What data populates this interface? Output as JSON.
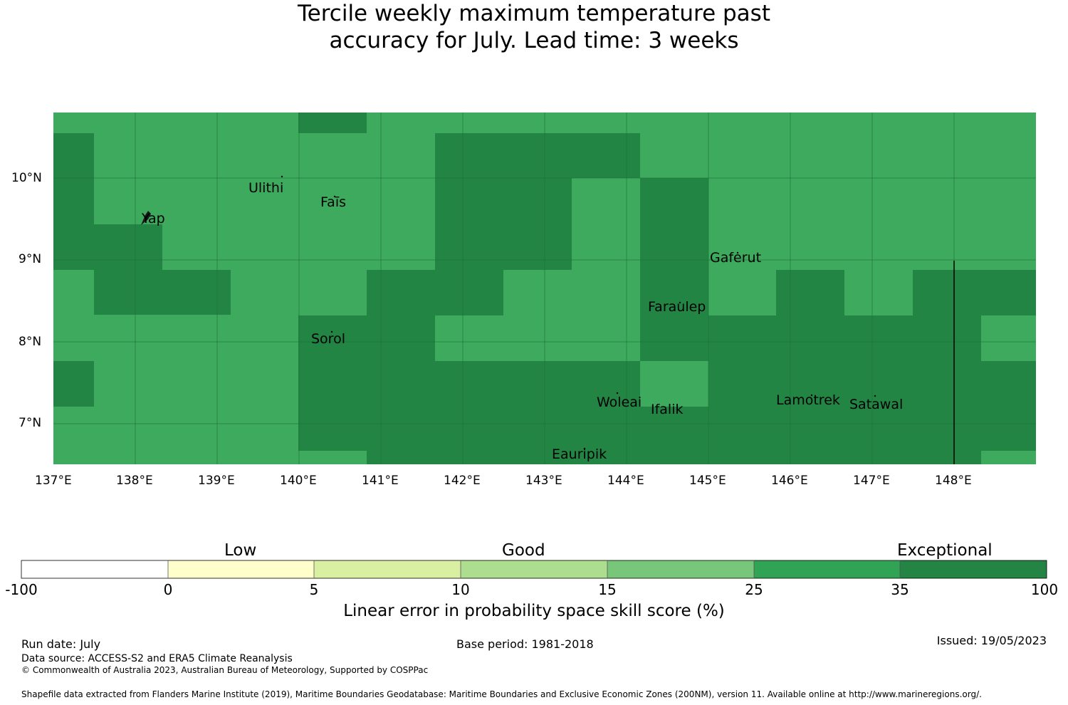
{
  "title": {
    "line1": "Tercile weekly maximum temperature past",
    "line2": "accuracy for July. Lead time: 3 weeks"
  },
  "map": {
    "lat_ticks": [
      "10°N",
      "9°N",
      "8°N",
      "7°N"
    ],
    "lon_ticks": [
      "137°E",
      "138°E",
      "139°E",
      "140°E",
      "141°E",
      "142°E",
      "143°E",
      "144°E",
      "145°E",
      "146°E",
      "147°E",
      "148°E"
    ],
    "places": [
      {
        "name": "Ulithi",
        "lon": 139.8,
        "lat": 10.02
      },
      {
        "name": "Faīs",
        "lon": 140.5,
        "lat": 9.77
      },
      {
        "name": "Yap",
        "lon": 138.1,
        "lat": 9.5
      },
      {
        "name": "Gaferut",
        "lon": 145.3,
        "lat": 9.22
      },
      {
        "name": "Faraulep",
        "lon": 144.6,
        "lat": 8.6
      },
      {
        "name": "Sorol",
        "lon": 140.4,
        "lat": 8.13
      },
      {
        "name": "Woleai",
        "lon": 143.9,
        "lat": 7.37
      },
      {
        "name": "Ifalik",
        "lon": 144.4,
        "lat": 7.25
      },
      {
        "name": "Lamotrek",
        "lon": 146.4,
        "lat": 7.5
      },
      {
        "name": "Satawal",
        "lon": 147.0,
        "lat": 7.37
      },
      {
        "name": "Eauripik",
        "lon": 143.0,
        "lat": 6.7
      }
    ],
    "category_colors": {
      "c25_35": "#3eaa5d",
      "c35_100": "#238543"
    }
  },
  "colorbar": {
    "words": [
      "Low",
      "Good",
      "Exceptional"
    ],
    "ticks": [
      "-100",
      "0",
      "5",
      "10",
      "15",
      "25",
      "35",
      "100"
    ],
    "colors": [
      "#ffffff",
      "#ffffcc",
      "#d9f0a3",
      "#addd8e",
      "#78c679",
      "#31a354",
      "#238443"
    ],
    "label": "Linear error in probability space skill score (%)"
  },
  "footer": {
    "run_date": "Run date: July",
    "base_period": "Base period: 1981-2018",
    "issued": "Issued: 19/05/2023",
    "data_source": "Data source: ACCESS-S2 and ERA5 Climate Reanalysis",
    "copyright": "© Commonwealth of Australia 2023, Australian Bureau of Meteorology, Supported by COSPPac",
    "shapefile": "Shapefile data extracted from Flanders Marine Institute (2019), Maritime Boundaries Geodatabase: Maritime Boundaries and Exclusive Economic Zones (200NM), version 11. Available online at http://www.marineregions.org/."
  }
}
